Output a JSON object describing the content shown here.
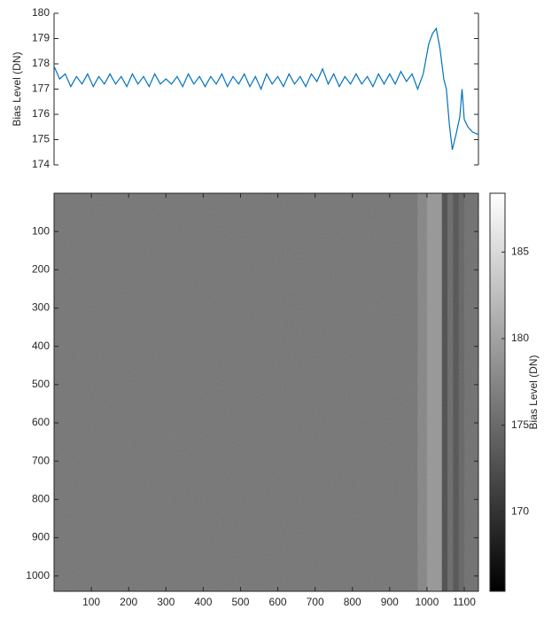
{
  "chart_data": [
    {
      "type": "line",
      "ylabel": "Bias Level (DN)",
      "color": "#0072bd",
      "xlim": [
        0,
        1138
      ],
      "ylim": [
        174,
        180
      ],
      "yticks": [
        174,
        175,
        176,
        177,
        178,
        179,
        180
      ],
      "x": [
        0,
        15,
        30,
        45,
        60,
        75,
        90,
        105,
        120,
        135,
        150,
        165,
        180,
        195,
        210,
        225,
        240,
        255,
        270,
        285,
        300,
        315,
        330,
        345,
        360,
        375,
        390,
        405,
        420,
        435,
        450,
        465,
        480,
        495,
        510,
        525,
        540,
        555,
        570,
        585,
        600,
        615,
        630,
        645,
        660,
        675,
        690,
        705,
        720,
        735,
        750,
        765,
        780,
        795,
        810,
        825,
        840,
        855,
        870,
        885,
        900,
        915,
        930,
        945,
        960,
        975,
        990,
        1005,
        1015,
        1025,
        1035,
        1045,
        1052,
        1060,
        1068,
        1078,
        1088,
        1094,
        1100,
        1110,
        1122,
        1138
      ],
      "values": [
        177.9,
        177.4,
        177.6,
        177.1,
        177.5,
        177.2,
        177.6,
        177.1,
        177.5,
        177.2,
        177.6,
        177.2,
        177.5,
        177.1,
        177.6,
        177.2,
        177.5,
        177.1,
        177.6,
        177.2,
        177.4,
        177.2,
        177.5,
        177.1,
        177.6,
        177.2,
        177.5,
        177.1,
        177.5,
        177.2,
        177.6,
        177.1,
        177.5,
        177.2,
        177.6,
        177.1,
        177.5,
        177.0,
        177.6,
        177.2,
        177.5,
        177.1,
        177.6,
        177.2,
        177.5,
        177.1,
        177.6,
        177.3,
        177.8,
        177.2,
        177.6,
        177.1,
        177.5,
        177.2,
        177.6,
        177.2,
        177.5,
        177.1,
        177.6,
        177.2,
        177.6,
        177.2,
        177.7,
        177.3,
        177.6,
        177.0,
        177.6,
        178.8,
        179.2,
        179.4,
        178.6,
        177.4,
        177.0,
        175.6,
        174.6,
        175.2,
        175.9,
        177.0,
        175.8,
        175.5,
        175.3,
        175.2
      ]
    },
    {
      "type": "heatmap",
      "colormap": "gray",
      "xlim": [
        0,
        1138
      ],
      "ylim": [
        0,
        1040
      ],
      "yreverse": true,
      "xticks": [
        100,
        200,
        300,
        400,
        500,
        600,
        700,
        800,
        900,
        1000,
        1100
      ],
      "yticks": [
        100,
        200,
        300,
        400,
        500,
        600,
        700,
        800,
        900,
        1000
      ],
      "column_edges": [
        0,
        975,
        1000,
        1040,
        1055,
        1070,
        1085,
        1100,
        1138
      ],
      "values": [
        176.0,
        177.5,
        179.0,
        172.5,
        175.0,
        173.0,
        174.5,
        175.5
      ],
      "colorbar": {
        "label": "Bias Level (DN)",
        "clim": [
          165.4,
          188.4
        ],
        "ticks": [
          170,
          175,
          180,
          185
        ]
      }
    }
  ]
}
